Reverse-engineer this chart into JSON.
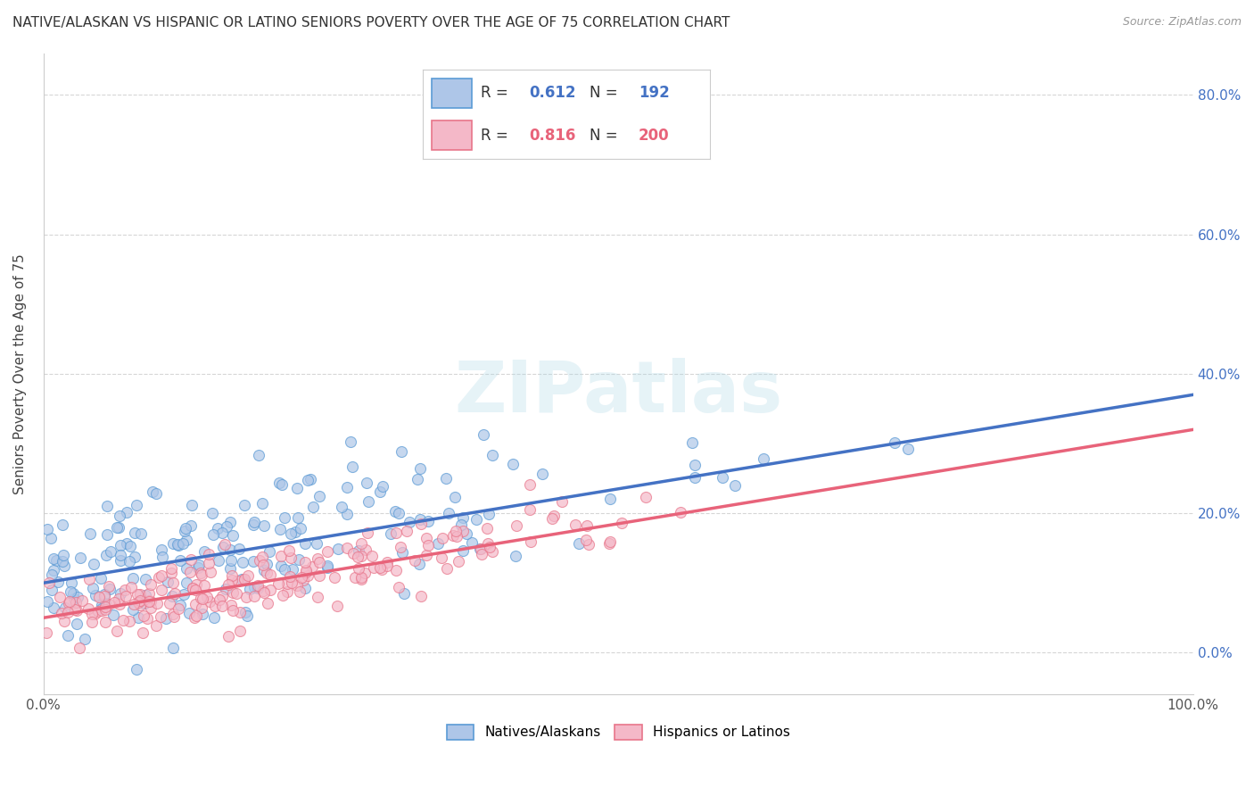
{
  "title": "NATIVE/ALASKAN VS HISPANIC OR LATINO SENIORS POVERTY OVER THE AGE OF 75 CORRELATION CHART",
  "source": "Source: ZipAtlas.com",
  "ylabel": "Seniors Poverty Over the Age of 75",
  "xlim": [
    0,
    1
  ],
  "ylim": [
    -0.06,
    0.86
  ],
  "xticks": [
    0.0,
    0.1,
    0.2,
    0.3,
    0.4,
    0.5,
    0.6,
    0.7,
    0.8,
    0.9,
    1.0
  ],
  "yticks": [
    0.0,
    0.2,
    0.4,
    0.6,
    0.8
  ],
  "xticklabels_show": [
    "0.0%",
    "100.0%"
  ],
  "xticklabels_pos": [
    0.0,
    1.0
  ],
  "yticklabels": [
    "0.0%",
    "20.0%",
    "40.0%",
    "60.0%",
    "80.0%"
  ],
  "native_color": "#aec6e8",
  "hispanic_color": "#f4b8c8",
  "native_edge_color": "#5b9bd5",
  "hispanic_edge_color": "#e8758a",
  "line_native_color": "#4472c4",
  "line_hispanic_color": "#e8637a",
  "R_native": 0.612,
  "N_native": 192,
  "R_hispanic": 0.816,
  "N_hispanic": 200,
  "watermark": "ZIPatlas",
  "legend_native": "Natives/Alaskans",
  "legend_hispanic": "Hispanics or Latinos",
  "native_slope": 0.27,
  "native_intercept": 0.1,
  "hispanic_slope": 0.27,
  "hispanic_intercept": 0.05,
  "background_color": "#ffffff",
  "grid_color": "#cccccc",
  "title_fontsize": 11,
  "seed": 42
}
